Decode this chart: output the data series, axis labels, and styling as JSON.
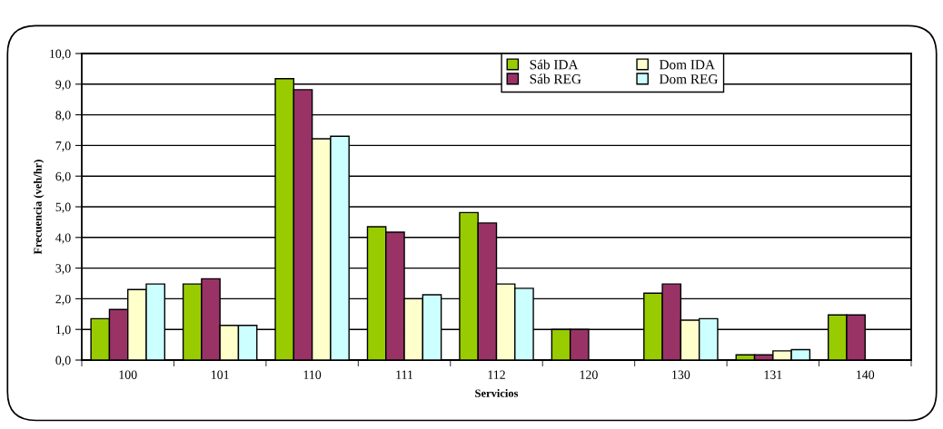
{
  "chart_data": {
    "type": "bar",
    "xlabel": "Servicios",
    "ylabel": "Frecuencia (veh/hr)",
    "categories": [
      "100",
      "101",
      "110",
      "111",
      "112",
      "120",
      "130",
      "131",
      "140"
    ],
    "series": [
      {
        "name": "Sáb IDA",
        "color": "#99cc00",
        "values": [
          1.35,
          2.48,
          9.18,
          4.35,
          4.81,
          1.0,
          2.18,
          0.17,
          1.47
        ]
      },
      {
        "name": "Sáb REG",
        "color": "#993366",
        "values": [
          1.65,
          2.65,
          8.82,
          4.17,
          4.47,
          1.0,
          2.48,
          0.17,
          1.47
        ]
      },
      {
        "name": "Dom IDA",
        "color": "#ffffcc",
        "values": [
          2.3,
          1.13,
          7.22,
          2.0,
          2.48,
          null,
          1.3,
          0.3,
          null
        ]
      },
      {
        "name": "Dom REG",
        "color": "#ccffff",
        "values": [
          2.48,
          1.13,
          7.3,
          2.13,
          2.34,
          null,
          1.35,
          0.34,
          null
        ]
      }
    ],
    "ylim": [
      0,
      10
    ],
    "yticks": [
      {
        "value": 0,
        "label": "0,0"
      },
      {
        "value": 1,
        "label": "1,0"
      },
      {
        "value": 2,
        "label": "2,0"
      },
      {
        "value": 3,
        "label": "3,0"
      },
      {
        "value": 4,
        "label": "4,0"
      },
      {
        "value": 5,
        "label": "5,0"
      },
      {
        "value": 6,
        "label": "6,0"
      },
      {
        "value": 7,
        "label": "7,0"
      },
      {
        "value": 8,
        "label": "8,0"
      },
      {
        "value": 9,
        "label": "9,0"
      },
      {
        "value": 10,
        "label": "10,0"
      }
    ],
    "grid": "y",
    "legend": "top"
  }
}
